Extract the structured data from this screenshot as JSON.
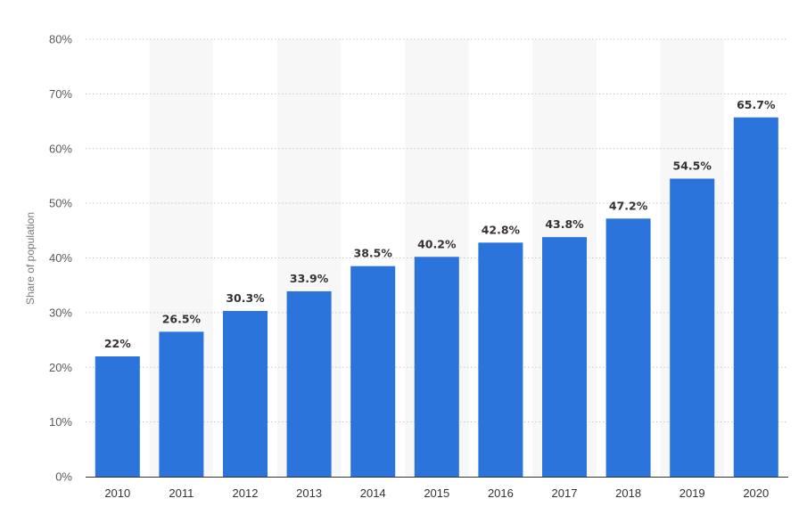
{
  "colors": {
    "bar": "#2a74dc",
    "band": "#f7f7f7",
    "grid": "#c8c8c8",
    "axis": "#333333"
  },
  "chart_data": {
    "type": "bar",
    "title": "",
    "xlabel": "",
    "ylabel": "Share of population",
    "categories": [
      "2010",
      "2011",
      "2012",
      "2013",
      "2014",
      "2015",
      "2016",
      "2017",
      "2018",
      "2019",
      "2020"
    ],
    "values": [
      22,
      26.5,
      30.3,
      33.9,
      38.5,
      40.2,
      42.8,
      43.8,
      47.2,
      54.5,
      65.7
    ],
    "value_labels": [
      "22%",
      "26.5%",
      "30.3%",
      "33.9%",
      "38.5%",
      "40.2%",
      "42.8%",
      "43.8%",
      "47.2%",
      "54.5%",
      "65.7%"
    ],
    "ylim": [
      0,
      80
    ],
    "yticks": [
      0,
      10,
      20,
      30,
      40,
      50,
      60,
      70,
      80
    ],
    "ytick_labels": [
      "0%",
      "10%",
      "20%",
      "30%",
      "40%",
      "50%",
      "60%",
      "70%",
      "80%"
    ],
    "grid": true,
    "legend": "none"
  }
}
